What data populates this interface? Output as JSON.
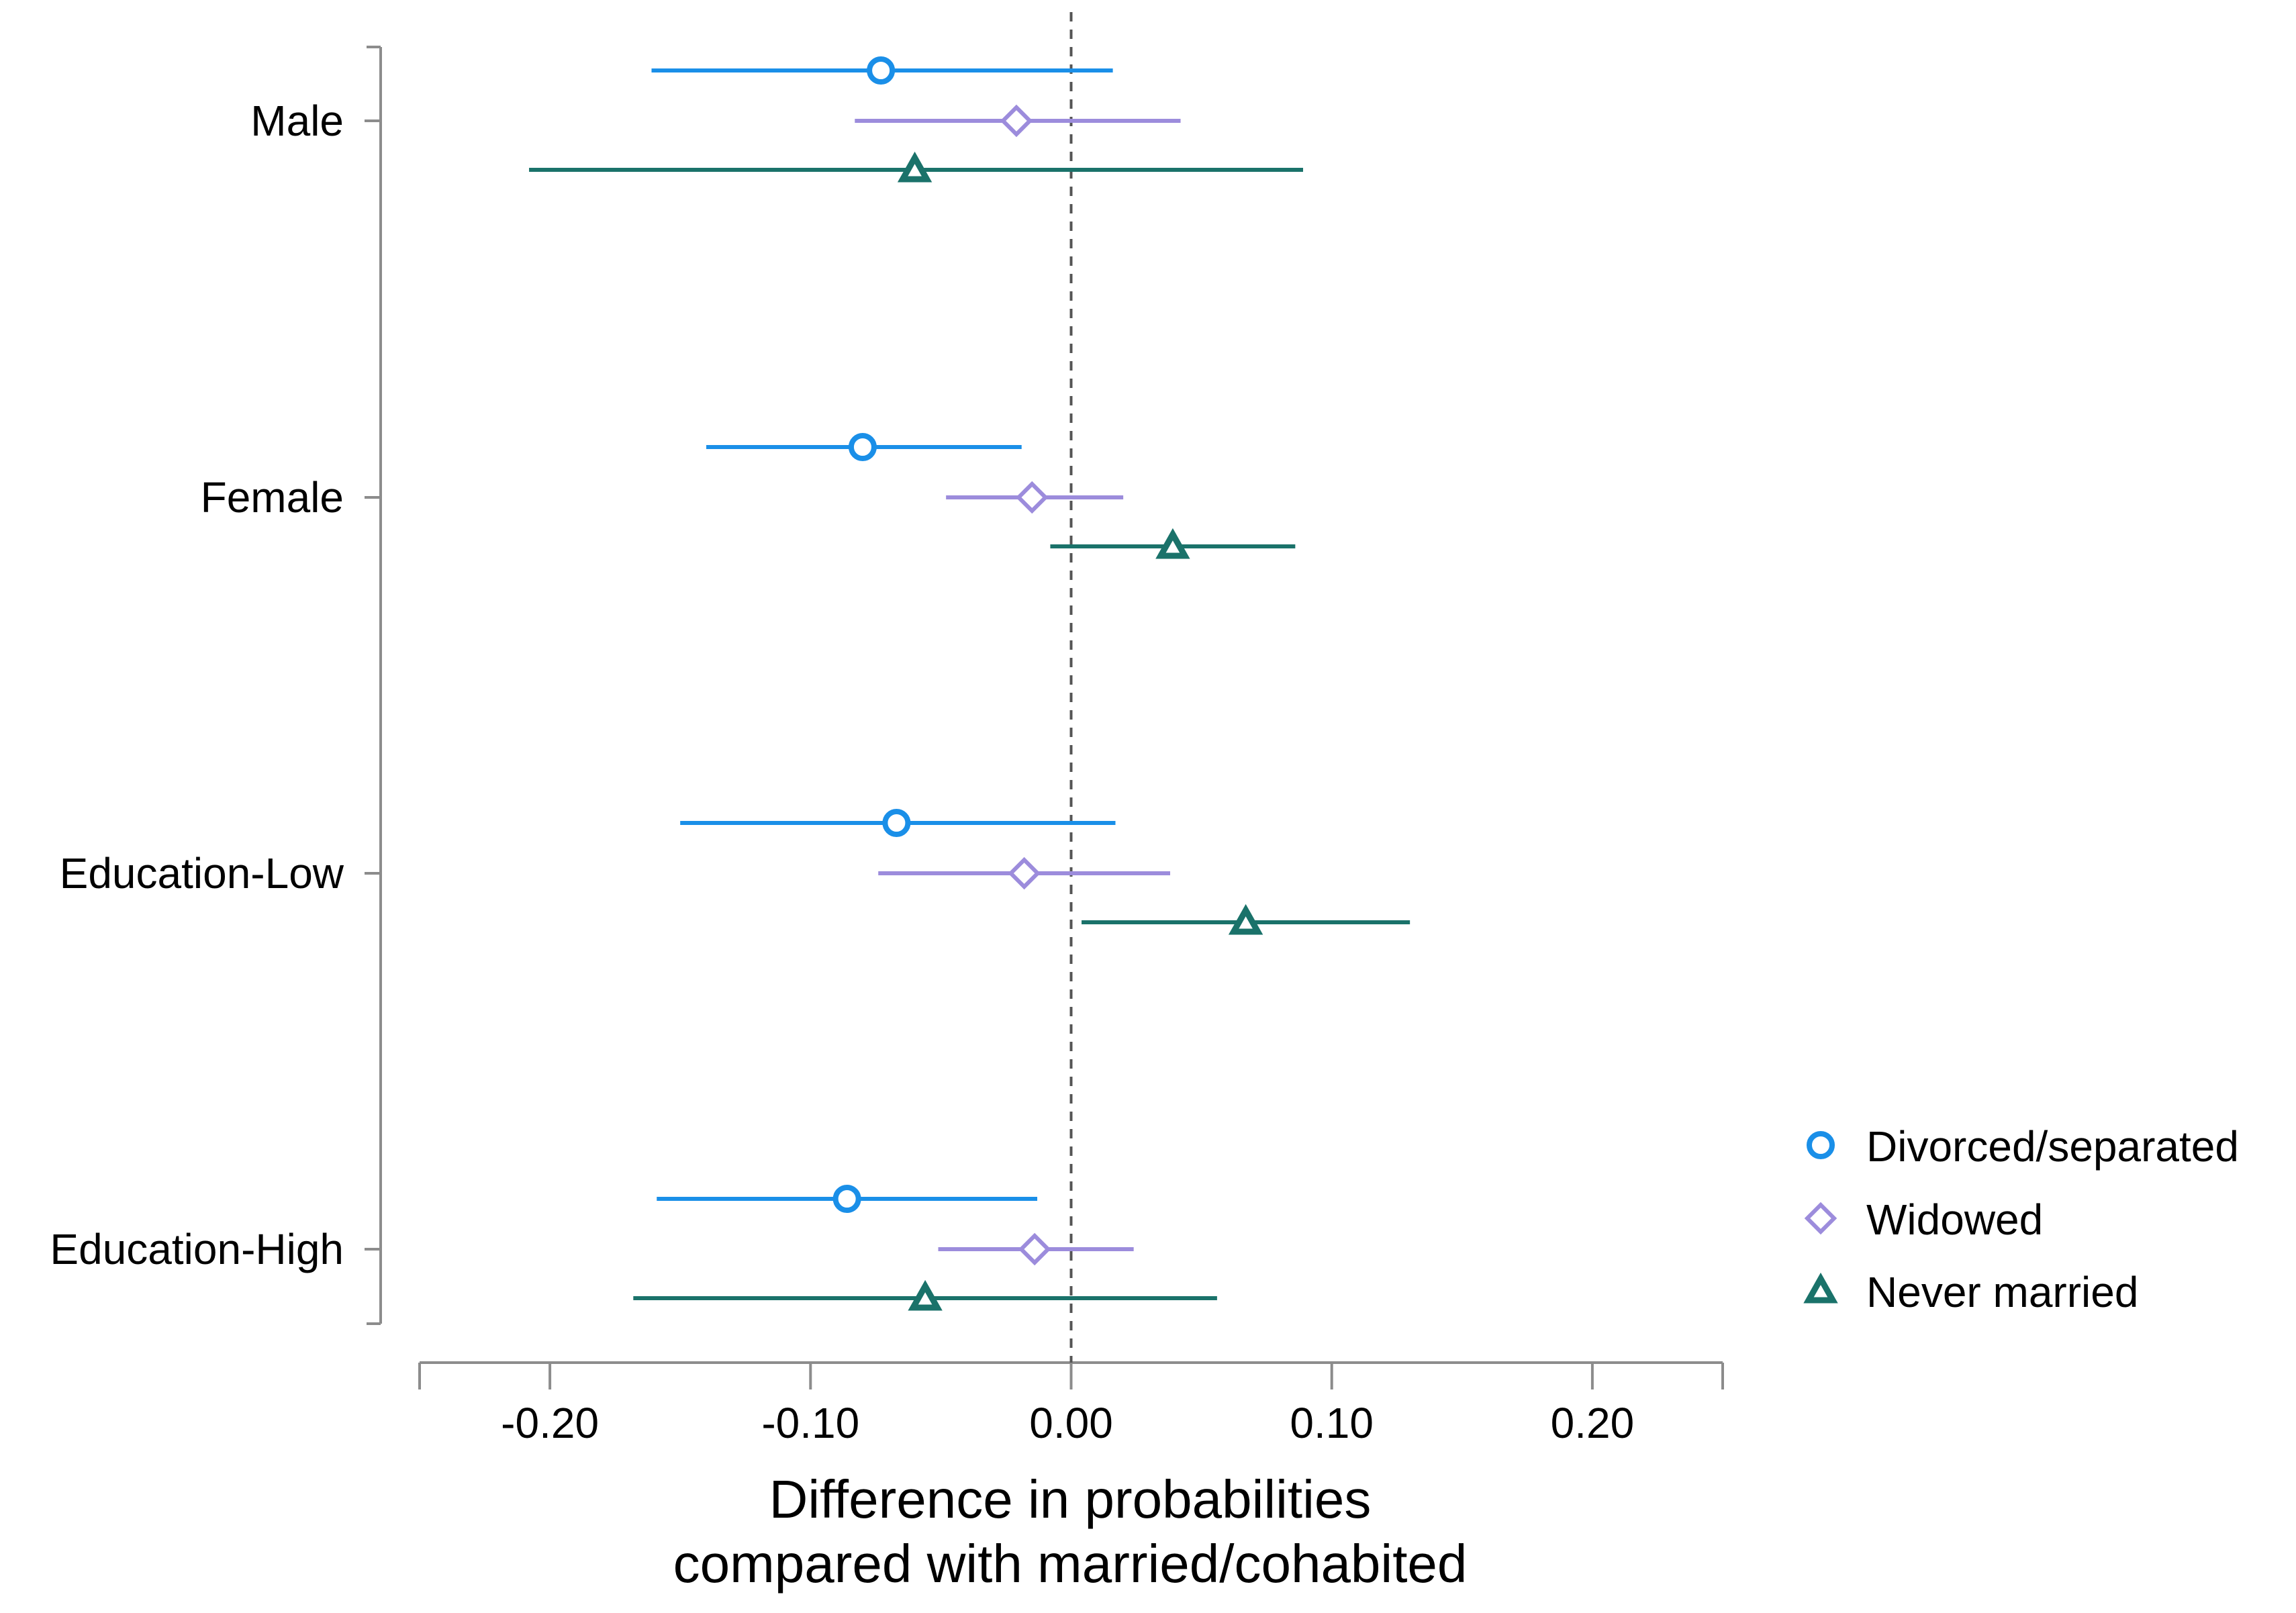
{
  "chart_data": {
    "type": "scatter",
    "subtype": "coefficient-plot",
    "title": "",
    "categories": [
      "Male",
      "Female",
      "Education-Low",
      "Education-High"
    ],
    "xlabel": [
      "Difference in probabilities",
      "compared with married/cohabited"
    ],
    "xlim": [
      -0.25,
      0.25
    ],
    "xticks": [
      -0.2,
      -0.1,
      0.0,
      0.1,
      0.2
    ],
    "xtick_labels": [
      "-0.20",
      "-0.10",
      "0.00",
      "0.10",
      "0.20"
    ],
    "reference_line": 0.0,
    "legend_position": "right",
    "series": [
      {
        "name": "Divorced/separated",
        "color": "#1a8fe8",
        "marker": "circle",
        "estimates": [
          -0.073,
          -0.08,
          -0.067,
          -0.086
        ],
        "ci_low": [
          -0.161,
          -0.14,
          -0.15,
          -0.159
        ],
        "ci_high": [
          0.016,
          -0.019,
          0.017,
          -0.013
        ]
      },
      {
        "name": "Widowed",
        "color": "#9c8cdc",
        "marker": "diamond",
        "estimates": [
          -0.021,
          -0.015,
          -0.018,
          -0.014
        ],
        "ci_low": [
          -0.083,
          -0.048,
          -0.074,
          -0.051
        ],
        "ci_high": [
          0.042,
          0.02,
          0.038,
          0.024
        ]
      },
      {
        "name": "Never married",
        "color": "#1a726a",
        "marker": "triangle",
        "estimates": [
          -0.06,
          0.039,
          0.067,
          -0.056
        ],
        "ci_low": [
          -0.208,
          -0.008,
          0.004,
          -0.168
        ],
        "ci_high": [
          0.089,
          0.086,
          0.13,
          0.056
        ]
      }
    ]
  }
}
